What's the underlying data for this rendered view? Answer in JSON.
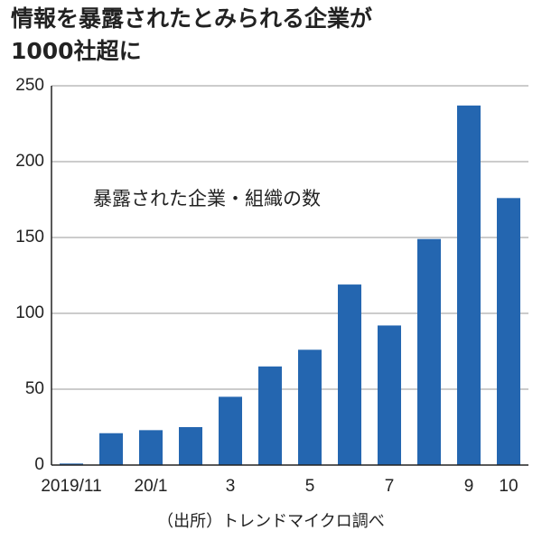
{
  "chart_data": {
    "type": "bar",
    "title": [
      "情報を暴露されたとみられる企業が",
      "1000社超に"
    ],
    "annotation": "暴露された企業・組織の数",
    "source": "（出所）トレンドマイクロ調べ",
    "categories": [
      "2019/11",
      null,
      "20/1",
      null,
      "3",
      null,
      "5",
      null,
      "7",
      null,
      "9",
      "10"
    ],
    "values": [
      1,
      21,
      23,
      25,
      45,
      65,
      76,
      119,
      92,
      149,
      237,
      176
    ],
    "color": "#2466b0",
    "ylim": [
      0,
      250
    ],
    "yticks": [
      0,
      50,
      100,
      150,
      200,
      250
    ],
    "grid": true
  }
}
